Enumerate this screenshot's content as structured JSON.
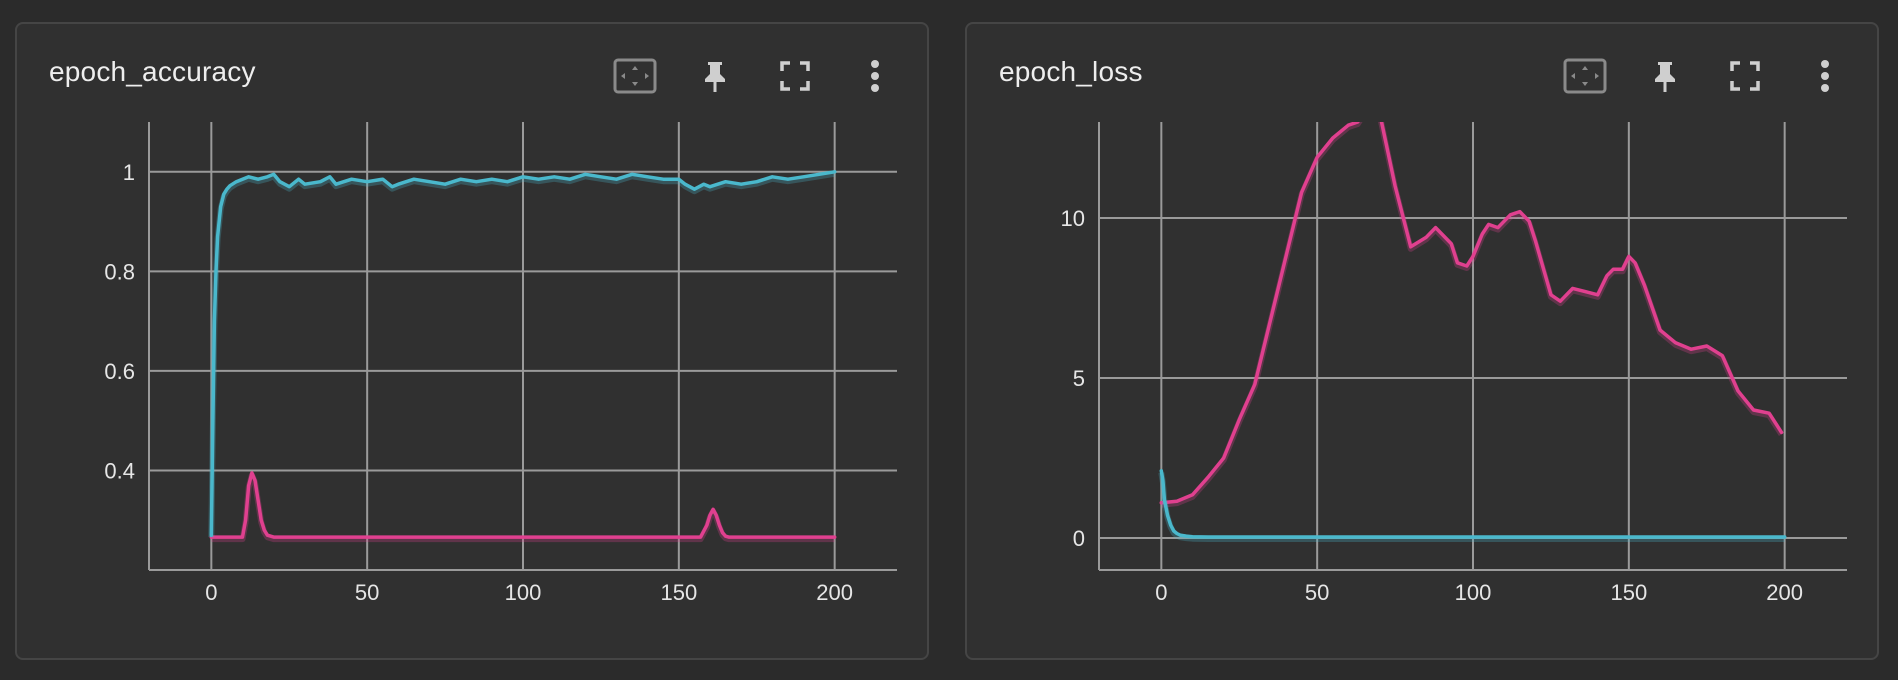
{
  "colors": {
    "background": "#2b2b2b",
    "card": "#303030",
    "grid": "#9a9a9a",
    "series_pink": "#e0408f",
    "series_cyan": "#4ab8cc"
  },
  "icons": {
    "fit": "fit-domain-icon",
    "pin": "pin-icon",
    "fullscreen": "fullscreen-icon",
    "more": "more-vertical-icon"
  },
  "chart_data": [
    {
      "title": "epoch_accuracy",
      "type": "line",
      "xlabel": "",
      "ylabel": "",
      "xlim": [
        -20,
        220
      ],
      "ylim": [
        0.2,
        1.1
      ],
      "xticks": [
        0,
        50,
        100,
        150,
        200
      ],
      "xtick_labels": [
        "0",
        "50",
        "100",
        "150",
        "200"
      ],
      "yticks": [
        0.4,
        0.6,
        0.8,
        1
      ],
      "ytick_labels": [
        "0.4",
        "0.6",
        "0.8",
        "1"
      ],
      "grid": true,
      "series": [
        {
          "color": "#e0408f",
          "x": [
            0,
            10,
            11,
            12,
            13,
            14,
            15,
            16,
            17,
            18,
            20,
            25,
            60,
            100,
            150,
            157,
            159,
            160,
            161,
            162,
            163,
            164,
            165,
            166,
            168,
            170,
            200
          ],
          "values": [
            0.266,
            0.266,
            0.3,
            0.37,
            0.395,
            0.38,
            0.34,
            0.3,
            0.28,
            0.27,
            0.266,
            0.266,
            0.266,
            0.266,
            0.266,
            0.266,
            0.29,
            0.31,
            0.322,
            0.31,
            0.29,
            0.275,
            0.268,
            0.266,
            0.266,
            0.266,
            0.266
          ]
        },
        {
          "color": "#4ab8cc",
          "x": [
            0,
            0.5,
            1,
            1.5,
            2,
            3,
            4,
            5,
            6,
            8,
            10,
            12,
            15,
            18,
            20,
            22,
            25,
            28,
            30,
            35,
            38,
            40,
            45,
            50,
            55,
            58,
            60,
            65,
            70,
            75,
            80,
            85,
            90,
            95,
            100,
            105,
            110,
            115,
            120,
            125,
            130,
            135,
            140,
            145,
            150,
            152,
            155,
            158,
            160,
            165,
            170,
            175,
            180,
            185,
            190,
            195,
            200
          ],
          "values": [
            0.27,
            0.5,
            0.7,
            0.8,
            0.87,
            0.93,
            0.955,
            0.965,
            0.972,
            0.98,
            0.985,
            0.99,
            0.985,
            0.99,
            0.995,
            0.98,
            0.97,
            0.985,
            0.975,
            0.98,
            0.99,
            0.975,
            0.985,
            0.98,
            0.985,
            0.97,
            0.975,
            0.985,
            0.98,
            0.975,
            0.985,
            0.98,
            0.985,
            0.98,
            0.99,
            0.985,
            0.99,
            0.985,
            0.995,
            0.99,
            0.985,
            0.995,
            0.99,
            0.985,
            0.985,
            0.975,
            0.965,
            0.975,
            0.97,
            0.98,
            0.975,
            0.98,
            0.99,
            0.985,
            0.99,
            0.995,
            1.0
          ]
        }
      ]
    },
    {
      "title": "epoch_loss",
      "type": "line",
      "xlabel": "",
      "ylabel": "",
      "xlim": [
        -20,
        220
      ],
      "ylim": [
        -1,
        13
      ],
      "xticks": [
        0,
        50,
        100,
        150,
        200
      ],
      "xtick_labels": [
        "0",
        "50",
        "100",
        "150",
        "200"
      ],
      "yticks": [
        0,
        5,
        10
      ],
      "ytick_labels": [
        "0",
        "5",
        "10"
      ],
      "grid": true,
      "series": [
        {
          "color": "#e0408f",
          "x": [
            0,
            5,
            10,
            15,
            20,
            25,
            30,
            35,
            40,
            45,
            50,
            55,
            60,
            63,
            65,
            68,
            70,
            75,
            80,
            85,
            88,
            90,
            93,
            95,
            98,
            100,
            103,
            105,
            108,
            112,
            115,
            118,
            120,
            125,
            128,
            132,
            136,
            140,
            143,
            145,
            148,
            150,
            152,
            155,
            160,
            165,
            170,
            175,
            180,
            185,
            190,
            195,
            199
          ],
          "values": [
            1.1,
            1.15,
            1.35,
            1.9,
            2.5,
            3.7,
            4.8,
            6.8,
            8.8,
            10.8,
            11.9,
            12.5,
            12.9,
            13.0,
            13.3,
            13.6,
            13.3,
            11.0,
            9.1,
            9.4,
            9.7,
            9.5,
            9.2,
            8.6,
            8.5,
            8.8,
            9.5,
            9.8,
            9.7,
            10.1,
            10.2,
            9.9,
            9.3,
            7.6,
            7.4,
            7.8,
            7.7,
            7.6,
            8.2,
            8.4,
            8.4,
            8.8,
            8.6,
            7.9,
            6.5,
            6.1,
            5.9,
            6.0,
            5.7,
            4.6,
            4.0,
            3.9,
            3.3
          ]
        },
        {
          "color": "#4ab8cc",
          "x": [
            0,
            0.5,
            1,
            2,
            3,
            4,
            5,
            6,
            8,
            10,
            15,
            20,
            30,
            50,
            80,
            100,
            120,
            150,
            180,
            200
          ],
          "values": [
            2.1,
            1.8,
            1.2,
            0.7,
            0.4,
            0.22,
            0.14,
            0.09,
            0.06,
            0.04,
            0.03,
            0.03,
            0.03,
            0.03,
            0.03,
            0.03,
            0.03,
            0.03,
            0.03,
            0.03
          ]
        }
      ]
    }
  ]
}
